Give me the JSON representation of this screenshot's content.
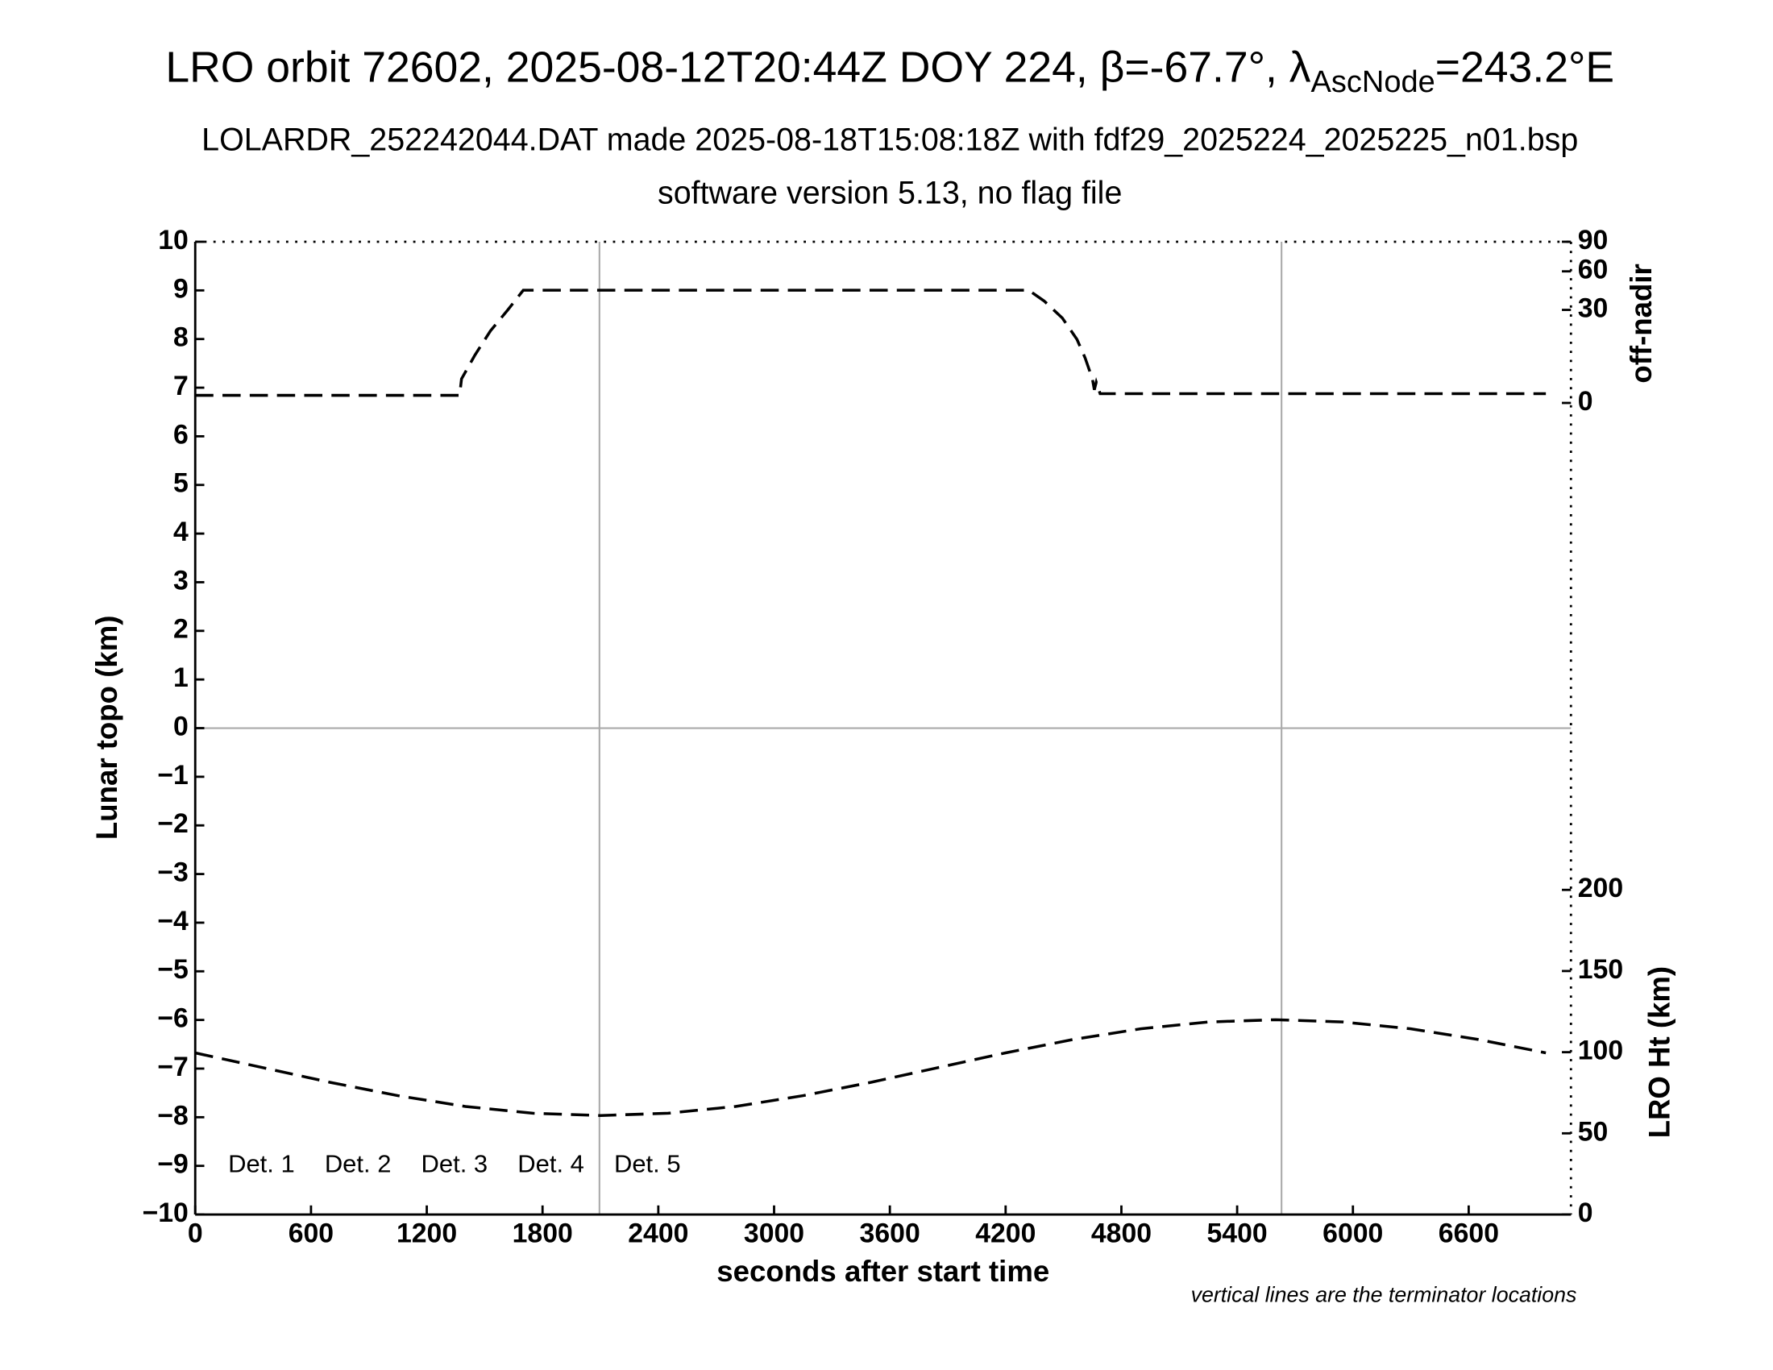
{
  "chart_data": {
    "type": "line",
    "title": [
      "LRO orbit 72602, 2025-08-12T20:44Z DOY 224, β=-67.7°, λ",
      "AscNode",
      "=243.2°E"
    ],
    "subtitle": [
      "LOLARDR_252242044.DAT made 2025-08-18T15:08:18Z with fdf29_2025224_2025225_n01.bsp",
      "software version 5.13, no flag file"
    ],
    "xlabel": "seconds after start time",
    "ylabel": "Lunar topo (km)",
    "y2label": "off-nadir",
    "y3label": "LRO Ht (km)",
    "annotation": "vertical lines are the terminator locations",
    "xlim": [
      0,
      7130
    ],
    "xticks": [
      0,
      600,
      1200,
      1800,
      2400,
      3000,
      3600,
      4200,
      4800,
      5400,
      6000,
      6600
    ],
    "ylim": [
      -10,
      10
    ],
    "yticks": [
      {
        "value": -10,
        "label": "−10"
      },
      {
        "value": -9,
        "label": "−9"
      },
      {
        "value": -8,
        "label": "−8"
      },
      {
        "value": -7,
        "label": "−7"
      },
      {
        "value": -6,
        "label": "−6"
      },
      {
        "value": -5,
        "label": "−5"
      },
      {
        "value": -4,
        "label": "−4"
      },
      {
        "value": -3,
        "label": "−3"
      },
      {
        "value": -2,
        "label": "−2"
      },
      {
        "value": -1,
        "label": "−1"
      },
      0,
      1,
      2,
      3,
      4,
      5,
      6,
      7,
      8,
      9,
      10
    ],
    "y2lim": [
      0,
      90
    ],
    "y2ticks": [
      0,
      30,
      60,
      90
    ],
    "y2scale": "sqrt",
    "y3lim": [
      0,
      200
    ],
    "y3ticks": [
      0,
      50,
      100,
      150,
      200
    ],
    "hlines": [
      0
    ],
    "vlines": [
      2095,
      5630
    ],
    "legend": [
      {
        "name": "Det. 1",
        "color": "#000000"
      },
      {
        "name": "Det. 2",
        "color": "#0000ff"
      },
      {
        "name": "Det. 3",
        "color": "#00ff00"
      },
      {
        "name": "Det. 4",
        "color": "#ffa500"
      },
      {
        "name": "Det. 5",
        "color": "#ff0000"
      }
    ],
    "series": [
      {
        "axis": "y2",
        "color": "#000000",
        "x": [
          0,
          1370,
          1380,
          1450,
          1530,
          1620,
          1700,
          4320,
          4400,
          4494,
          4570,
          4612,
          4650,
          4660,
          4670,
          4690,
          7000
        ],
        "values": [
          0.2,
          0.2,
          2,
          8,
          18,
          30,
          44,
          44,
          36,
          25,
          14,
          7,
          2,
          0.6,
          1.5,
          0.3,
          0.3
        ]
      },
      {
        "axis": "y3",
        "color": "#000000",
        "x": [
          0,
          350,
          700,
          1050,
          1400,
          1750,
          2100,
          2450,
          2800,
          3150,
          3500,
          3850,
          4200,
          4550,
          4900,
          5250,
          5600,
          5950,
          6300,
          6650,
          7000
        ],
        "values": [
          99.6,
          90.5,
          81.4,
          73.2,
          66.6,
          62.4,
          61.0,
          62.4,
          66.6,
          73.2,
          81.4,
          90.5,
          99.6,
          107.8,
          114.4,
          118.6,
          120,
          118.6,
          114.4,
          107.8,
          99.6
        ]
      }
    ]
  }
}
